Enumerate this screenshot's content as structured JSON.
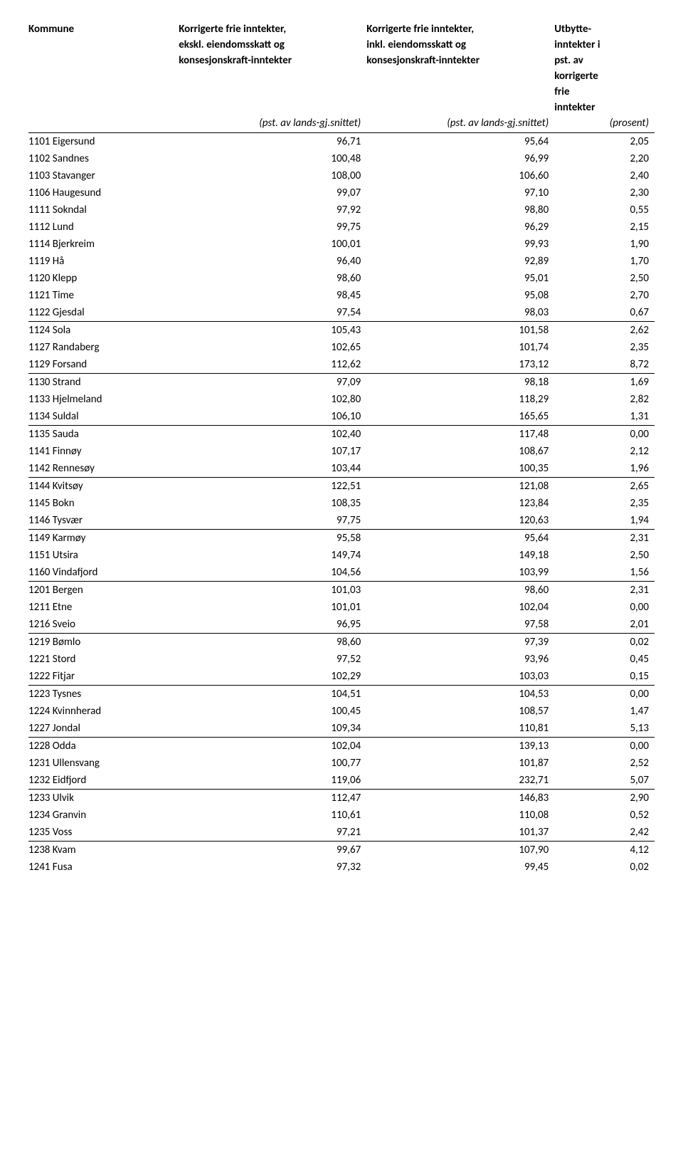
{
  "headers": {
    "col1": "Kommune",
    "col2_l1": "Korrigerte frie inntekter,",
    "col2_l2": "ekskl. eiendomsskatt og",
    "col2_l3": "konsesjonskraft-inntekter",
    "col2_sub": "(pst. av lands-gj.snittet)",
    "col3_l1": "Korrigerte frie inntekter,",
    "col3_l2": "inkl. eiendomsskatt og",
    "col3_l3": "konsesjonskraft-inntekter",
    "col3_sub": "(pst. av lands-gj.snittet)",
    "col4_l1": "Utbytte-",
    "col4_l2": "inntekter i",
    "col4_l3": "pst. av",
    "col4_l4": "korrigerte",
    "col4_l5": "frie",
    "col4_l6": "inntekter",
    "col4_sub": "(prosent)"
  },
  "rows": [
    {
      "name": "1101 Eigersund",
      "v1": "96,71",
      "v2": "95,64",
      "v3": "2,05",
      "sep": false
    },
    {
      "name": "1102 Sandnes",
      "v1": "100,48",
      "v2": "96,99",
      "v3": "2,20",
      "sep": false
    },
    {
      "name": "1103 Stavanger",
      "v1": "108,00",
      "v2": "106,60",
      "v3": "2,40",
      "sep": false
    },
    {
      "name": "1106 Haugesund",
      "v1": "99,07",
      "v2": "97,10",
      "v3": "2,30",
      "sep": false
    },
    {
      "name": "1111 Sokndal",
      "v1": "97,92",
      "v2": "98,80",
      "v3": "0,55",
      "sep": false
    },
    {
      "name": "1112 Lund",
      "v1": "99,75",
      "v2": "96,29",
      "v3": "2,15",
      "sep": false
    },
    {
      "name": "1114 Bjerkreim",
      "v1": "100,01",
      "v2": "99,93",
      "v3": "1,90",
      "sep": false
    },
    {
      "name": "1119 Hå",
      "v1": "96,40",
      "v2": "92,89",
      "v3": "1,70",
      "sep": false
    },
    {
      "name": "1120 Klepp",
      "v1": "98,60",
      "v2": "95,01",
      "v3": "2,50",
      "sep": false
    },
    {
      "name": "1121 Time",
      "v1": "98,45",
      "v2": "95,08",
      "v3": "2,70",
      "sep": false
    },
    {
      "name": "1122 Gjesdal",
      "v1": "97,54",
      "v2": "98,03",
      "v3": "0,67",
      "sep": true
    },
    {
      "name": "1124 Sola",
      "v1": "105,43",
      "v2": "101,58",
      "v3": "2,62",
      "sep": false
    },
    {
      "name": "1127 Randaberg",
      "v1": "102,65",
      "v2": "101,74",
      "v3": "2,35",
      "sep": false
    },
    {
      "name": "1129 Forsand",
      "v1": "112,62",
      "v2": "173,12",
      "v3": "8,72",
      "sep": true
    },
    {
      "name": "1130 Strand",
      "v1": "97,09",
      "v2": "98,18",
      "v3": "1,69",
      "sep": false
    },
    {
      "name": "1133 Hjelmeland",
      "v1": "102,80",
      "v2": "118,29",
      "v3": "2,82",
      "sep": false
    },
    {
      "name": "1134 Suldal",
      "v1": "106,10",
      "v2": "165,65",
      "v3": "1,31",
      "sep": true
    },
    {
      "name": "1135 Sauda",
      "v1": "102,40",
      "v2": "117,48",
      "v3": "0,00",
      "sep": false
    },
    {
      "name": "1141 Finnøy",
      "v1": "107,17",
      "v2": "108,67",
      "v3": "2,12",
      "sep": false
    },
    {
      "name": "1142 Rennesøy",
      "v1": "103,44",
      "v2": "100,35",
      "v3": "1,96",
      "sep": true
    },
    {
      "name": "1144 Kvitsøy",
      "v1": "122,51",
      "v2": "121,08",
      "v3": "2,65",
      "sep": false
    },
    {
      "name": "1145 Bokn",
      "v1": "108,35",
      "v2": "123,84",
      "v3": "2,35",
      "sep": false
    },
    {
      "name": "1146 Tysvær",
      "v1": "97,75",
      "v2": "120,63",
      "v3": "1,94",
      "sep": true
    },
    {
      "name": "1149 Karmøy",
      "v1": "95,58",
      "v2": "95,64",
      "v3": "2,31",
      "sep": false
    },
    {
      "name": "1151 Utsira",
      "v1": "149,74",
      "v2": "149,18",
      "v3": "2,50",
      "sep": false
    },
    {
      "name": "1160 Vindafjord",
      "v1": "104,56",
      "v2": "103,99",
      "v3": "1,56",
      "sep": true
    },
    {
      "name": "1201 Bergen",
      "v1": "101,03",
      "v2": "98,60",
      "v3": "2,31",
      "sep": false
    },
    {
      "name": "1211 Etne",
      "v1": "101,01",
      "v2": "102,04",
      "v3": "0,00",
      "sep": false
    },
    {
      "name": "1216 Sveio",
      "v1": "96,95",
      "v2": "97,58",
      "v3": "2,01",
      "sep": true
    },
    {
      "name": "1219 Bømlo",
      "v1": "98,60",
      "v2": "97,39",
      "v3": "0,02",
      "sep": false
    },
    {
      "name": "1221 Stord",
      "v1": "97,52",
      "v2": "93,96",
      "v3": "0,45",
      "sep": false
    },
    {
      "name": "1222 Fitjar",
      "v1": "102,29",
      "v2": "103,03",
      "v3": "0,15",
      "sep": true
    },
    {
      "name": "1223 Tysnes",
      "v1": "104,51",
      "v2": "104,53",
      "v3": "0,00",
      "sep": false
    },
    {
      "name": "1224 Kvinnherad",
      "v1": "100,45",
      "v2": "108,57",
      "v3": "1,47",
      "sep": false
    },
    {
      "name": "1227 Jondal",
      "v1": "109,34",
      "v2": "110,81",
      "v3": "5,13",
      "sep": true
    },
    {
      "name": "1228 Odda",
      "v1": "102,04",
      "v2": "139,13",
      "v3": "0,00",
      "sep": false
    },
    {
      "name": "1231 Ullensvang",
      "v1": "100,77",
      "v2": "101,87",
      "v3": "2,52",
      "sep": false
    },
    {
      "name": "1232 Eidfjord",
      "v1": "119,06",
      "v2": "232,71",
      "v3": "5,07",
      "sep": true
    },
    {
      "name": "1233 Ulvik",
      "v1": "112,47",
      "v2": "146,83",
      "v3": "2,90",
      "sep": false
    },
    {
      "name": "1234 Granvin",
      "v1": "110,61",
      "v2": "110,08",
      "v3": "0,52",
      "sep": false
    },
    {
      "name": "1235 Voss",
      "v1": "97,21",
      "v2": "101,37",
      "v3": "2,42",
      "sep": true
    },
    {
      "name": "1238 Kvam",
      "v1": "99,67",
      "v2": "107,90",
      "v3": "4,12",
      "sep": false
    },
    {
      "name": "1241 Fusa",
      "v1": "97,32",
      "v2": "99,45",
      "v3": "0,02",
      "sep": false
    }
  ]
}
